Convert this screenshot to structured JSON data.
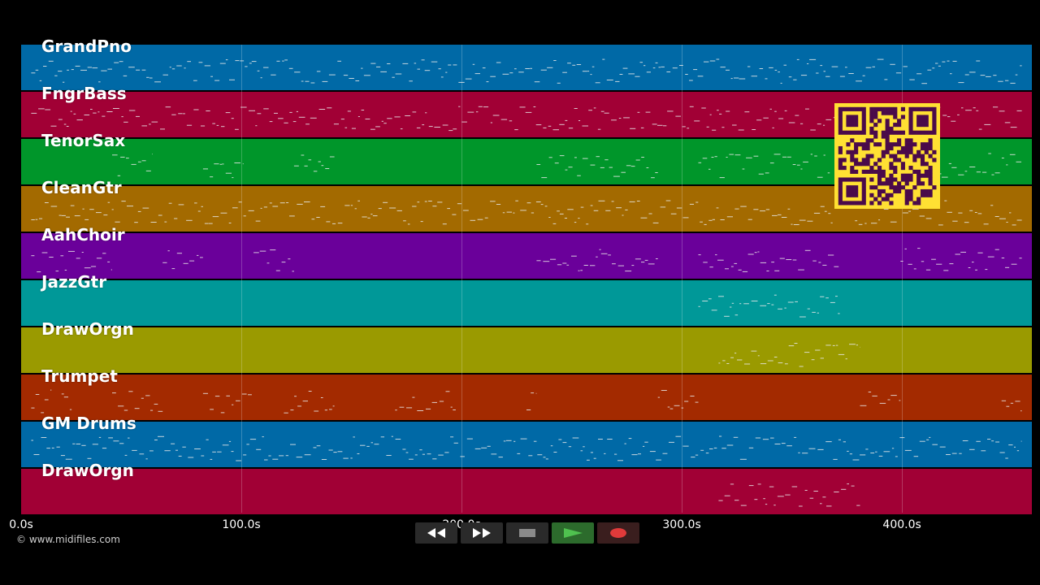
{
  "tracks": [
    {
      "name": "GrandPno",
      "color": "#0069a6"
    },
    {
      "name": "FngrBass",
      "color": "#a10035"
    },
    {
      "name": "TenorSax",
      "color": "#00962a"
    },
    {
      "name": "CleanGtr",
      "color": "#a36a00"
    },
    {
      "name": "AahChoir",
      "color": "#6a009a"
    },
    {
      "name": "JazzGtr",
      "color": "#009898"
    },
    {
      "name": "DrawOrgn",
      "color": "#9a9a00"
    },
    {
      "name": "Trumpet",
      "color": "#a32a00"
    },
    {
      "name": "GM Drums",
      "color": "#0069a6"
    },
    {
      "name": "DrawOrgn",
      "color": "#a10035"
    }
  ],
  "timeline": {
    "ticks": [
      "0.0s",
      "100.0s",
      "200.0s",
      "300.0s",
      "400.0s"
    ],
    "tick_values": [
      0,
      100,
      200,
      300,
      400
    ],
    "max_seconds": 459
  },
  "copyright": "© www.midifiles.com",
  "transport": {
    "rewind_icon": "rewind-icon",
    "forward_icon": "fast-forward-icon",
    "stop_icon": "stop-icon",
    "play_icon": "play-icon",
    "record_icon": "record-icon",
    "play_color": "#4fc24f",
    "record_color": "#e03a3a"
  },
  "qr_code": {
    "color": "#ffe033",
    "ink": "#4a0a4a"
  }
}
